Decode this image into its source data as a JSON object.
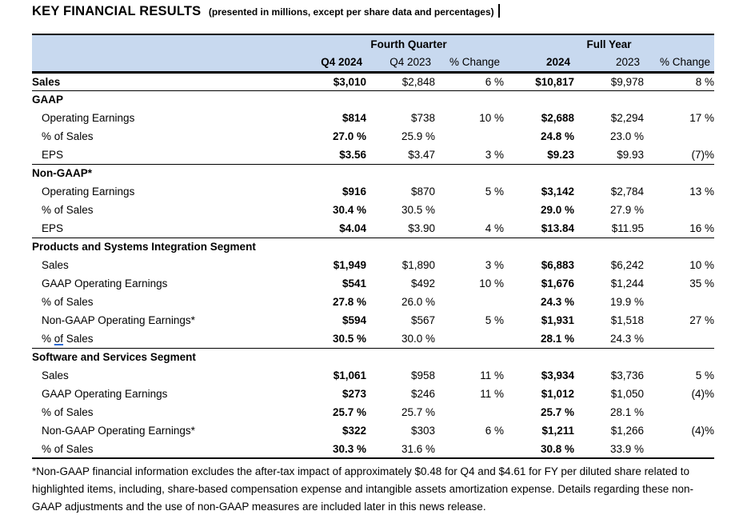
{
  "title": {
    "main": "KEY FINANCIAL RESULTS",
    "sub": "(presented in millions, except per share data and percentages)"
  },
  "table": {
    "group_headers": [
      {
        "label": "Fourth Quarter"
      },
      {
        "label": "Full Year"
      }
    ],
    "column_headers": [
      "Q4 2024",
      "Q4 2023",
      "% Change",
      "2024",
      "2023",
      "% Change"
    ],
    "rows": [
      {
        "type": "data",
        "label": "Sales",
        "label_bold": true,
        "indent": false,
        "border_bottom": true,
        "values": [
          "$3,010",
          "$2,848",
          "6 %",
          "$10,817",
          "$9,978",
          "8 %"
        ]
      },
      {
        "type": "section",
        "label": "GAAP"
      },
      {
        "type": "data",
        "label": "Operating Earnings",
        "indent": true,
        "values": [
          "$814",
          "$738",
          "10 %",
          "$2,688",
          "$2,294",
          "17 %"
        ]
      },
      {
        "type": "data",
        "label": "% of Sales",
        "indent": true,
        "values": [
          "27.0 %",
          "25.9 %",
          "",
          "24.8 %",
          "23.0 %",
          ""
        ]
      },
      {
        "type": "data",
        "label": "EPS",
        "indent": true,
        "border_bottom": true,
        "values": [
          "$3.56",
          "$3.47",
          "3 %",
          "$9.23",
          "$9.93",
          "(7)%"
        ]
      },
      {
        "type": "section",
        "label": "Non-GAAP*"
      },
      {
        "type": "data",
        "label": "Operating Earnings",
        "indent": true,
        "values": [
          "$916",
          "$870",
          "5 %",
          "$3,142",
          "$2,784",
          "13 %"
        ]
      },
      {
        "type": "data",
        "label": "% of Sales",
        "indent": true,
        "values": [
          "30.4 %",
          "30.5 %",
          "",
          "29.0 %",
          "27.9 %",
          ""
        ]
      },
      {
        "type": "data",
        "label": "EPS",
        "indent": true,
        "border_bottom": true,
        "values": [
          "$4.04",
          "$3.90",
          "4 %",
          "$13.84",
          "$11.95",
          "16 %"
        ]
      },
      {
        "type": "section",
        "label": "Products and Systems Integration Segment"
      },
      {
        "type": "data",
        "label": "Sales",
        "indent": true,
        "values": [
          "$1,949",
          "$1,890",
          "3 %",
          "$6,883",
          "$6,242",
          "10 %"
        ]
      },
      {
        "type": "data",
        "label": "GAAP Operating Earnings",
        "indent": true,
        "values": [
          "$541",
          "$492",
          "10 %",
          "$1,676",
          "$1,244",
          "35 %"
        ]
      },
      {
        "type": "data",
        "label": "% of Sales",
        "indent": true,
        "values": [
          "27.8 %",
          "26.0 %",
          "",
          "24.3 %",
          "19.9 %",
          ""
        ]
      },
      {
        "type": "data",
        "label": "Non-GAAP Operating Earnings*",
        "indent": true,
        "values": [
          "$594",
          "$567",
          "5 %",
          "$1,931",
          "$1,518",
          "27 %"
        ]
      },
      {
        "type": "data",
        "label": "% of Sales",
        "indent": true,
        "mark_word": "of",
        "border_bottom": true,
        "values": [
          "30.5 %",
          "30.0 %",
          "",
          "28.1 %",
          "24.3 %",
          ""
        ]
      },
      {
        "type": "section",
        "label": "Software and Services Segment"
      },
      {
        "type": "data",
        "label": "Sales",
        "indent": true,
        "values": [
          "$1,061",
          "$958",
          "11 %",
          "$3,934",
          "$3,736",
          "5 %"
        ]
      },
      {
        "type": "data",
        "label": "GAAP Operating Earnings",
        "indent": true,
        "values": [
          "$273",
          "$246",
          "11 %",
          "$1,012",
          "$1,050",
          "(4)%"
        ]
      },
      {
        "type": "data",
        "label": "% of Sales",
        "indent": true,
        "values": [
          "25.7 %",
          "25.7 %",
          "",
          "25.7 %",
          "28.1 %",
          ""
        ]
      },
      {
        "type": "data",
        "label": "Non-GAAP Operating Earnings*",
        "indent": true,
        "values": [
          "$322",
          "$303",
          "6 %",
          "$1,211",
          "$1,266",
          "(4)%"
        ]
      },
      {
        "type": "data",
        "label": "% of Sales",
        "indent": true,
        "border_bottom": true,
        "values": [
          "30.3 %",
          "31.6 %",
          "",
          "30.8 %",
          "33.9 %",
          ""
        ]
      }
    ]
  },
  "footnote": "*Non-GAAP financial information excludes the after-tax impact of approximately $0.48 for Q4 and $4.61 for FY per diluted share related to highlighted items, including, share-based compensation expense and intangible assets amortization expense. Details regarding these non-GAAP adjustments and the use of non-GAAP measures are included later in this news release.",
  "colors": {
    "header_bg": "#c8d9ef",
    "text": "#000000",
    "grammar_underline": "#2e6bd3"
  }
}
